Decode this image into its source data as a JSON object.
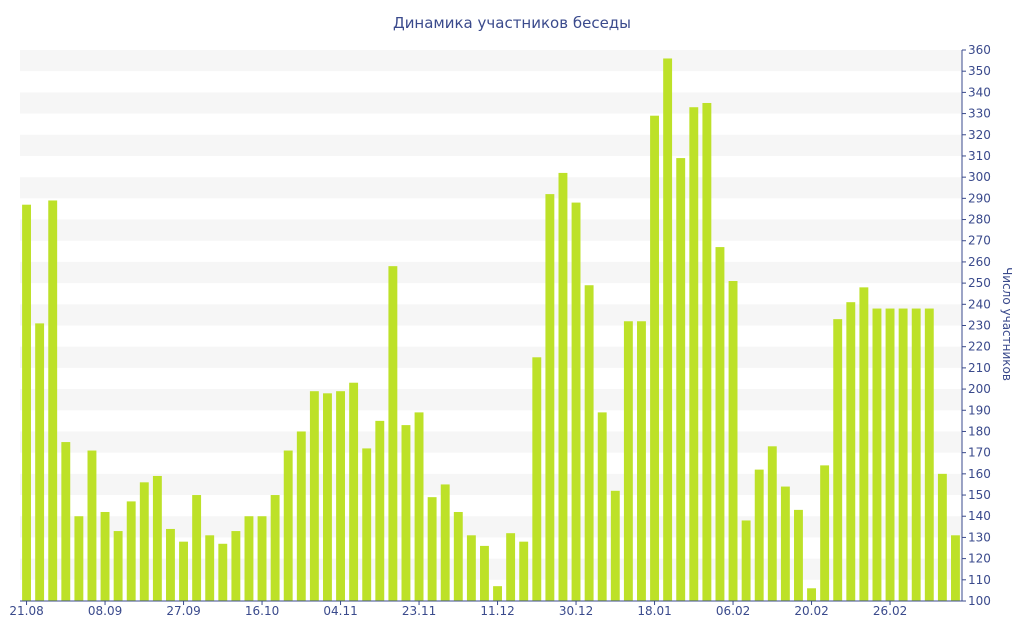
{
  "chart_data": {
    "type": "bar",
    "title": "Динамика участников беседы",
    "ylabel": "Число участников",
    "xlabel": "",
    "ylim": [
      100,
      360
    ],
    "y_ticks": [
      100,
      110,
      120,
      130,
      140,
      150,
      160,
      170,
      180,
      190,
      200,
      210,
      220,
      230,
      240,
      250,
      260,
      270,
      280,
      290,
      300,
      310,
      320,
      330,
      340,
      350,
      360
    ],
    "x_tick_labels": [
      "21.08",
      "08.09",
      "27.09",
      "16.10",
      "04.11",
      "23.11",
      "11.12",
      "30.12",
      "18.01",
      "06.02",
      "20.02",
      "26.02"
    ],
    "x_tick_bar_index": [
      0,
      6,
      12,
      18,
      24,
      30,
      36,
      42,
      48,
      54,
      60,
      66
    ],
    "values": [
      287,
      231,
      289,
      175,
      140,
      171,
      142,
      133,
      147,
      156,
      159,
      134,
      128,
      150,
      131,
      127,
      133,
      140,
      140,
      150,
      171,
      180,
      199,
      198,
      199,
      203,
      172,
      185,
      258,
      183,
      189,
      149,
      155,
      142,
      131,
      126,
      107,
      132,
      128,
      215,
      292,
      302,
      288,
      249,
      189,
      152,
      232,
      232,
      329,
      356,
      309,
      333,
      335,
      267,
      251,
      138,
      162,
      173,
      154,
      143,
      106,
      164,
      233,
      241,
      248,
      238,
      238,
      238,
      238,
      238,
      160,
      131
    ],
    "bar_color": "#bde128",
    "band_color": "#f6f6f6",
    "grid": true,
    "y_axis_position": "right",
    "legend": "none"
  }
}
